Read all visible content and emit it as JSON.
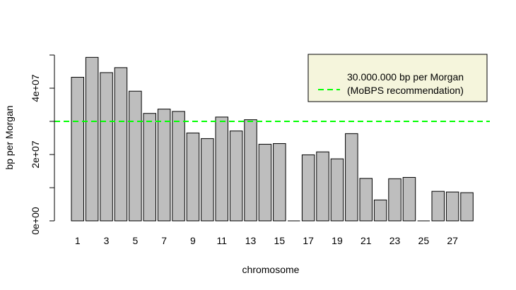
{
  "chart_data": {
    "type": "bar",
    "title": "",
    "xlabel": "chromosome",
    "ylabel": "bp per Morgan",
    "categories": [
      "1",
      "2",
      "3",
      "4",
      "5",
      "6",
      "7",
      "8",
      "9",
      "10",
      "11",
      "12",
      "13",
      "14",
      "15",
      "16",
      "17",
      "18",
      "19",
      "20",
      "21",
      "22",
      "23",
      "24",
      "25",
      "26",
      "27",
      "28"
    ],
    "x_tick_labels": [
      "1",
      "3",
      "5",
      "7",
      "9",
      "11",
      "13",
      "15",
      "17",
      "19",
      "21",
      "23",
      "25",
      "27"
    ],
    "values": [
      43300000,
      49300000,
      44700000,
      46200000,
      39100000,
      32400000,
      33700000,
      33000000,
      26500000,
      24800000,
      31300000,
      27100000,
      30500000,
      23100000,
      23300000,
      0,
      19900000,
      20800000,
      18700000,
      26300000,
      12800000,
      6300000,
      12700000,
      13100000,
      0,
      8900000,
      8700000,
      8500000
    ],
    "ylim": [
      0,
      50000000
    ],
    "y_ticks": [
      0,
      10000000,
      20000000,
      30000000,
      40000000,
      50000000
    ],
    "y_tick_labels": [
      "0e+00",
      "2e+07",
      "4e+07"
    ],
    "y_tick_label_values": [
      0,
      20000000,
      40000000
    ],
    "bar_color": "#bebebe",
    "bar_border_color": "#000000",
    "reference_line": {
      "value": 30000000,
      "color": "#00ff00",
      "style": "dashed"
    },
    "legend": {
      "position": "top-right",
      "background": "#f5f5dc",
      "lines": [
        "30.000.000 bp per Morgan",
        "(MoBPS recommendation)"
      ]
    },
    "grid": false
  }
}
